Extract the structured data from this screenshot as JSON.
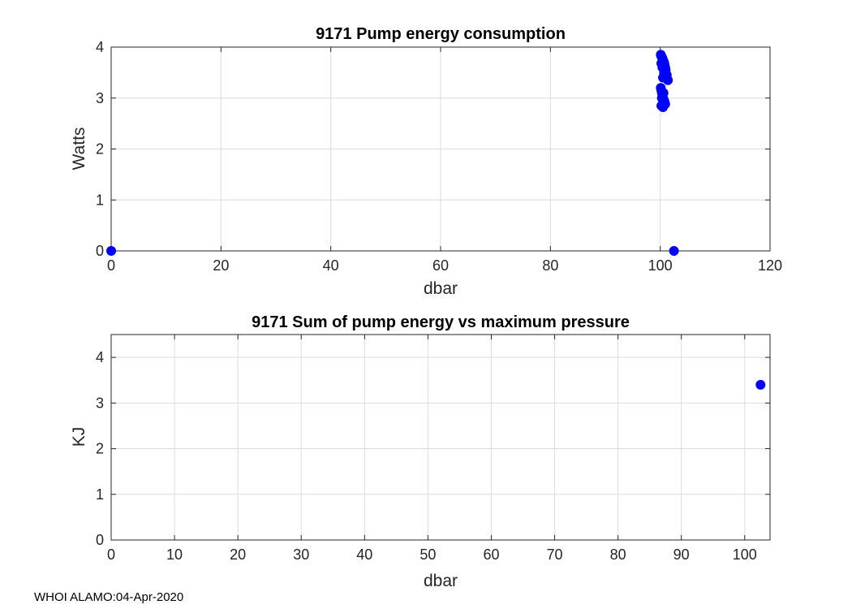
{
  "footer": "WHOI ALAMO:04-Apr-2020",
  "chart_data": [
    {
      "type": "scatter",
      "title": "9171 Pump energy consumption",
      "xlabel": "dbar",
      "ylabel": "Watts",
      "xlim": [
        0,
        120
      ],
      "ylim": [
        0,
        4
      ],
      "xticks": [
        0,
        20,
        40,
        60,
        80,
        100,
        120
      ],
      "yticks": [
        0,
        1,
        2,
        3,
        4
      ],
      "marker_color": "#0000ff",
      "x": [
        0,
        102.5,
        100.1,
        100.2,
        100.3,
        100.4,
        100.5,
        100.6,
        100.7,
        100.8,
        100.9,
        101.0,
        101.2,
        101.4,
        100.1,
        100.2,
        100.3,
        100.4,
        100.5,
        100.6,
        100.7,
        100.8,
        100.9,
        100.2,
        100.5,
        100.8,
        100.3,
        100.6,
        100.4,
        100.7,
        100.2,
        100.5
      ],
      "y": [
        0,
        0,
        3.85,
        3.82,
        3.8,
        3.78,
        3.75,
        3.72,
        3.7,
        3.65,
        3.6,
        3.55,
        3.45,
        3.35,
        3.2,
        3.15,
        3.1,
        3.05,
        3.0,
        2.98,
        2.95,
        2.92,
        2.88,
        2.85,
        2.82,
        2.9,
        3.0,
        3.1,
        3.6,
        3.5,
        3.68,
        3.4
      ]
    },
    {
      "type": "scatter",
      "title": "9171 Sum of pump energy vs maximum pressure",
      "xlabel": "dbar",
      "ylabel": "KJ",
      "xlim": [
        0,
        104
      ],
      "ylim": [
        0,
        4.5
      ],
      "xticks": [
        0,
        10,
        20,
        30,
        40,
        50,
        60,
        70,
        80,
        90,
        100
      ],
      "yticks": [
        0,
        1,
        2,
        3,
        4
      ],
      "marker_color": "#0000ff",
      "x": [
        102.5
      ],
      "y": [
        3.4
      ]
    }
  ]
}
